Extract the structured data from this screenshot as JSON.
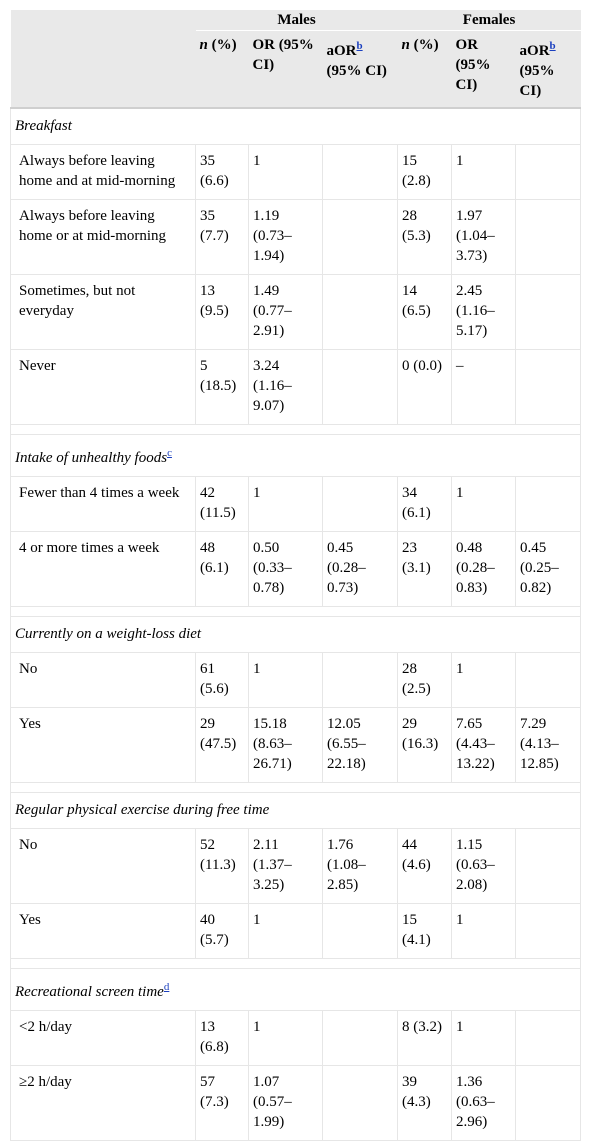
{
  "header": {
    "males": "Males",
    "females": "Females",
    "n_pct_n": "n",
    "n_pct_rest": " (%)",
    "or_label": "OR (95% CI)",
    "aor_label": "aOR",
    "aor_sup": "b",
    "aor_ci": " (95% CI)"
  },
  "sections": [
    {
      "title": "Breakfast",
      "sup": "",
      "rows": [
        {
          "label": "Always before leaving home and at mid-morning",
          "m_n": "35 (6.6)",
          "m_or": "1",
          "m_aor": "",
          "f_n": "15 (2.8)",
          "f_or": "1",
          "f_aor": ""
        },
        {
          "label": "Always before leaving home or at mid-morning",
          "m_n": "35 (7.7)",
          "m_or": "1.19 (0.73–1.94)",
          "m_aor": "",
          "f_n": "28 (5.3)",
          "f_or": "1.97 (1.04–3.73)",
          "f_aor": ""
        },
        {
          "label": "Sometimes, but not everyday",
          "m_n": "13 (9.5)",
          "m_or": "1.49 (0.77–2.91)",
          "m_aor": "",
          "f_n": "14 (6.5)",
          "f_or": "2.45 (1.16–5.17)",
          "f_aor": ""
        },
        {
          "label": "Never",
          "m_n": "5 (18.5)",
          "m_or": "3.24 (1.16–9.07)",
          "m_aor": "",
          "f_n": "0 (0.0)",
          "f_or": "–",
          "f_aor": ""
        }
      ]
    },
    {
      "title": "Intake of unhealthy foods",
      "sup": "c",
      "rows": [
        {
          "label": "Fewer than 4 times a week",
          "m_n": "42 (11.5)",
          "m_or": "1",
          "m_aor": "",
          "f_n": "34 (6.1)",
          "f_or": "1",
          "f_aor": ""
        },
        {
          "label": "4 or more times a week",
          "m_n": "48 (6.1)",
          "m_or": "0.50 (0.33–0.78)",
          "m_aor": "0.45 (0.28–0.73)",
          "f_n": "23 (3.1)",
          "f_or": "0.48 (0.28–0.83)",
          "f_aor": "0.45 (0.25–0.82)"
        }
      ]
    },
    {
      "title": "Currently on a weight-loss diet",
      "sup": "",
      "rows": [
        {
          "label": "No",
          "m_n": "61 (5.6)",
          "m_or": "1",
          "m_aor": "",
          "f_n": "28 (2.5)",
          "f_or": "1",
          "f_aor": ""
        },
        {
          "label": "Yes",
          "m_n": "29 (47.5)",
          "m_or": "15.18 (8.63–26.71)",
          "m_aor": "12.05 (6.55–22.18)",
          "f_n": "29 (16.3)",
          "f_or": "7.65 (4.43–13.22)",
          "f_aor": "7.29 (4.13–12.85)"
        }
      ]
    },
    {
      "title": "Regular physical exercise during free time",
      "sup": "",
      "rows": [
        {
          "label": "No",
          "m_n": "52 (11.3)",
          "m_or": "2.11 (1.37–3.25)",
          "m_aor": "1.76 (1.08–2.85)",
          "f_n": "44 (4.6)",
          "f_or": "1.15 (0.63–2.08)",
          "f_aor": ""
        },
        {
          "label": "Yes",
          "m_n": "40 (5.7)",
          "m_or": "1",
          "m_aor": "",
          "f_n": "15 (4.1)",
          "f_or": "1",
          "f_aor": ""
        }
      ]
    },
    {
      "title": "Recreational screen time",
      "sup": "d",
      "rows": [
        {
          "label": "<2 h/day",
          "m_n": "13 (6.8)",
          "m_or": "1",
          "m_aor": "",
          "f_n": "8 (3.2)",
          "f_or": "1",
          "f_aor": ""
        },
        {
          "label": "≥2 h/day",
          "m_n": "57 (7.3)",
          "m_or": "1.07 (0.57–1.99)",
          "m_aor": "",
          "f_n": "39 (4.3)",
          "f_or": "1.36 (0.63–2.96)",
          "f_aor": ""
        }
      ]
    }
  ]
}
